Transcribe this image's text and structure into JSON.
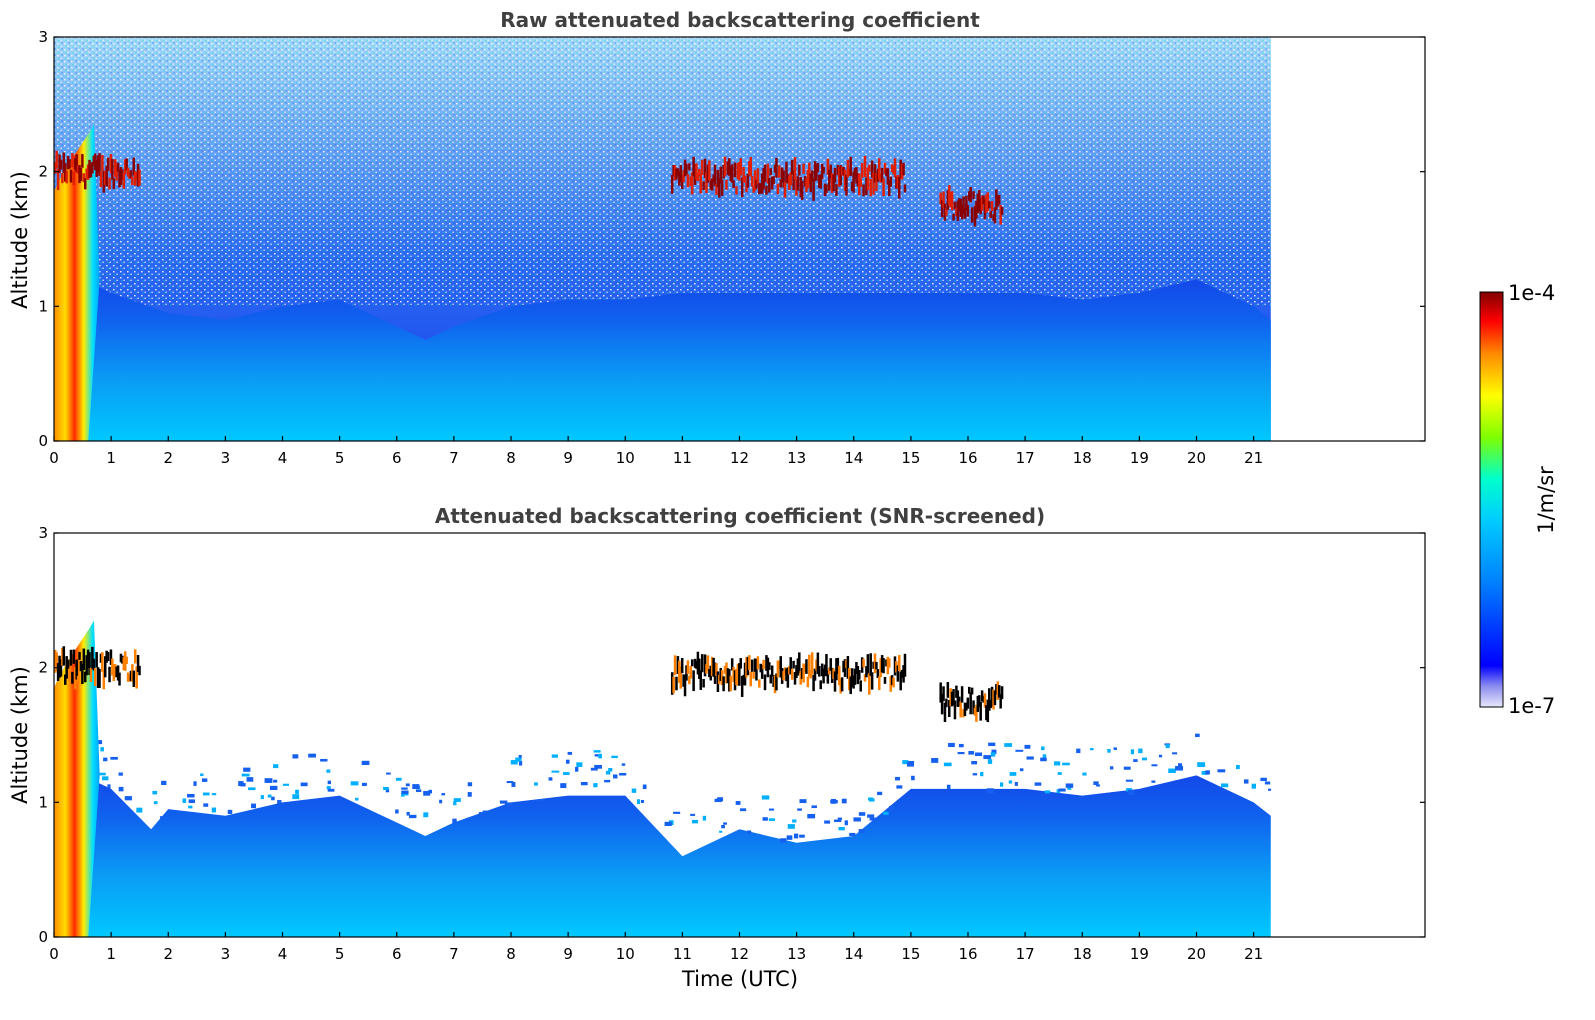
{
  "chart_data": [
    {
      "type": "heatmap",
      "title": "Raw attenuated backscattering coefficient",
      "xlabel": "",
      "ylabel": "Altitude (km)",
      "xlim": [
        0,
        24
      ],
      "ylim": [
        0,
        3
      ],
      "x_ticks": [
        0,
        1,
        2,
        3,
        4,
        5,
        6,
        7,
        8,
        9,
        10,
        11,
        12,
        13,
        14,
        15,
        16,
        17,
        18,
        19,
        20,
        21
      ],
      "y_ticks": [
        0,
        1,
        2,
        3
      ],
      "data_end_time": 21.3,
      "screened": false,
      "boundary_layer_top_km": [
        [
          0,
          1.3
        ],
        [
          1,
          1.1
        ],
        [
          2,
          0.95
        ],
        [
          3,
          0.9
        ],
        [
          4,
          1.0
        ],
        [
          5,
          1.05
        ],
        [
          6,
          0.85
        ],
        [
          6.5,
          0.75
        ],
        [
          7,
          0.85
        ],
        [
          8,
          1.0
        ],
        [
          9,
          1.05
        ],
        [
          10,
          1.05
        ],
        [
          11,
          1.1
        ],
        [
          12,
          1.1
        ],
        [
          13,
          1.1
        ],
        [
          14,
          1.1
        ],
        [
          15,
          1.1
        ],
        [
          16,
          1.1
        ],
        [
          17,
          1.1
        ],
        [
          18,
          1.05
        ],
        [
          19,
          1.1
        ],
        [
          20,
          1.2
        ],
        [
          21,
          1.0
        ],
        [
          21.3,
          0.9
        ]
      ],
      "cloud_layers": [
        {
          "t_start": 0.0,
          "t_end": 1.5,
          "alt_km": 2.0
        },
        {
          "t_start": 10.8,
          "t_end": 14.9,
          "alt_km": 1.95
        },
        {
          "t_start": 15.5,
          "t_end": 16.6,
          "alt_km": 1.75
        }
      ]
    },
    {
      "type": "heatmap",
      "title": "Attenuated backscattering coefficient (SNR-screened)",
      "xlabel": "Time (UTC)",
      "ylabel": "Altitude (km)",
      "xlim": [
        0,
        24
      ],
      "ylim": [
        0,
        3
      ],
      "x_ticks": [
        0,
        1,
        2,
        3,
        4,
        5,
        6,
        7,
        8,
        9,
        10,
        11,
        12,
        13,
        14,
        15,
        16,
        17,
        18,
        19,
        20,
        21
      ],
      "y_ticks": [
        0,
        1,
        2,
        3
      ],
      "data_end_time": 21.3,
      "screened": true,
      "boundary_layer_top_km": [
        [
          0,
          1.3
        ],
        [
          1,
          1.1
        ],
        [
          1.7,
          0.8
        ],
        [
          2,
          0.95
        ],
        [
          3,
          0.9
        ],
        [
          4,
          1.0
        ],
        [
          5,
          1.05
        ],
        [
          6,
          0.85
        ],
        [
          6.5,
          0.75
        ],
        [
          7,
          0.85
        ],
        [
          8,
          1.0
        ],
        [
          9,
          1.05
        ],
        [
          10,
          1.05
        ],
        [
          11,
          0.6
        ],
        [
          12,
          0.8
        ],
        [
          13,
          0.7
        ],
        [
          14,
          0.75
        ],
        [
          15,
          1.1
        ],
        [
          16,
          1.1
        ],
        [
          17,
          1.1
        ],
        [
          18,
          1.05
        ],
        [
          19,
          1.1
        ],
        [
          20,
          1.2
        ],
        [
          21,
          1.0
        ],
        [
          21.3,
          0.9
        ]
      ],
      "cloud_layers": [
        {
          "t_start": 0.0,
          "t_end": 1.5,
          "alt_km": 2.0
        },
        {
          "t_start": 10.8,
          "t_end": 14.9,
          "alt_km": 1.95
        },
        {
          "t_start": 15.5,
          "t_end": 16.6,
          "alt_km": 1.75
        }
      ]
    }
  ],
  "colorbar": {
    "label": "1/m/sr",
    "max_label": "1e-4",
    "min_label": "1e-7",
    "colormap": "jet",
    "colors": [
      "#e8e8fa",
      "#0000ff",
      "#00bfff",
      "#00ffcc",
      "#7fff00",
      "#ffff00",
      "#ff8c00",
      "#ff0000",
      "#800000"
    ]
  }
}
